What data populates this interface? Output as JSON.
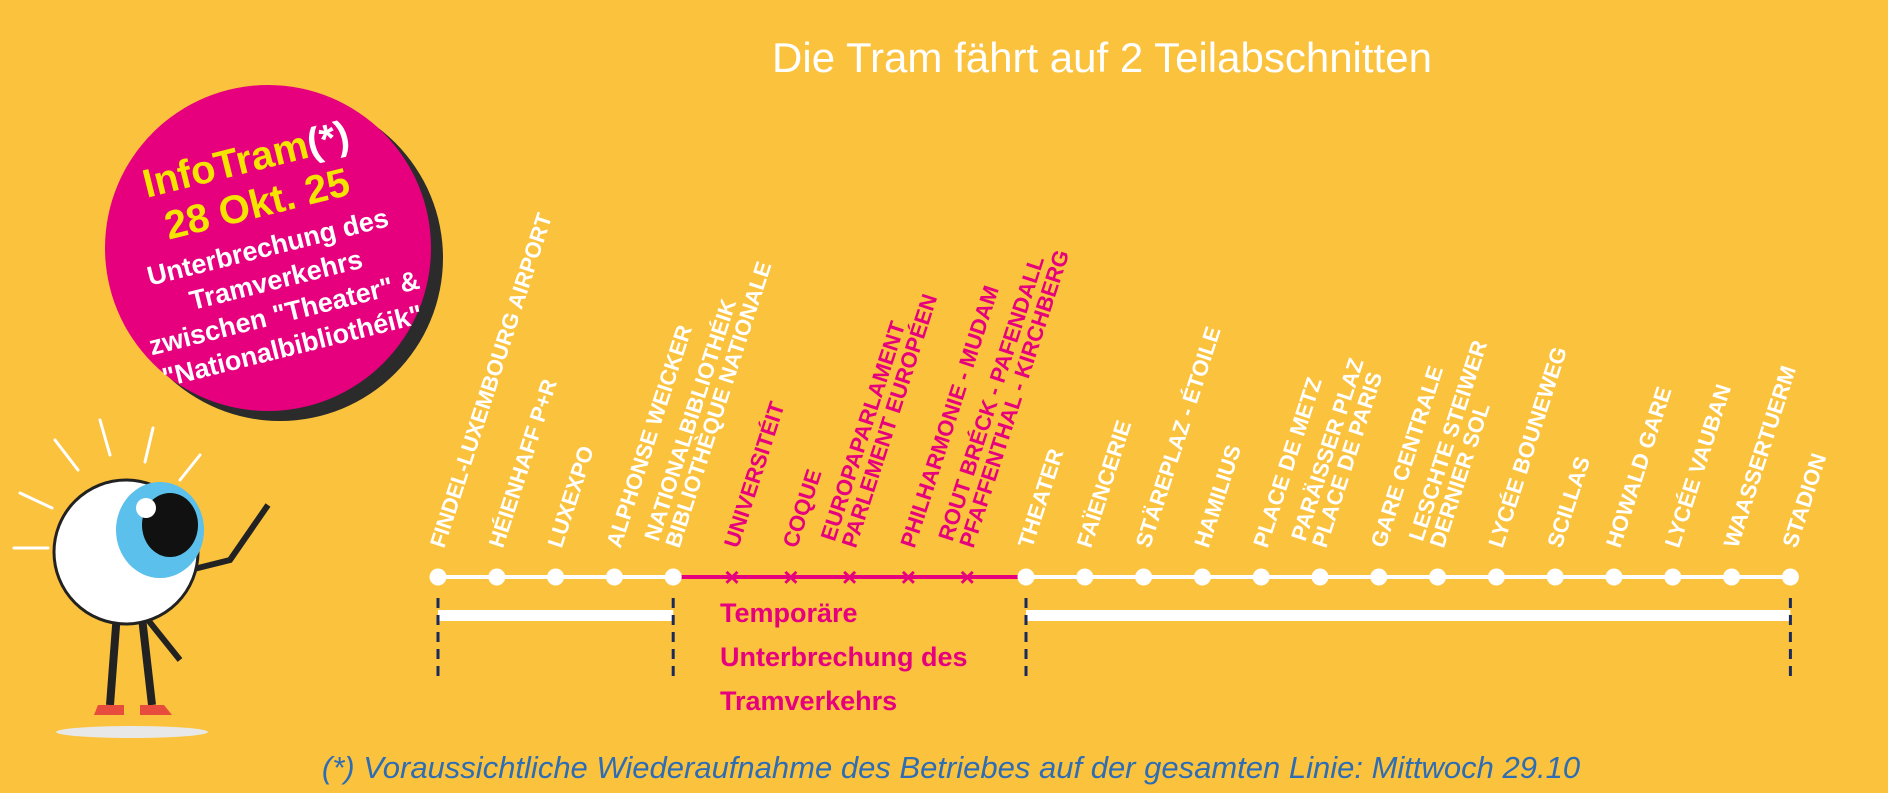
{
  "header": {
    "title": "Die Tram fährt auf 2 Teilabschnitten"
  },
  "badge": {
    "title": "InfoTram",
    "mark": "(*)",
    "date": "28 Okt. 25",
    "lines": [
      "Unterbrechung des",
      "Tramverkehrs",
      "zwischen \"Theater\" &",
      "\"Nationalbibliothéik\""
    ]
  },
  "stations": [
    {
      "lines": [
        "FINDEL-LUXEMBOURG AIRPORT"
      ],
      "interrupted": false
    },
    {
      "lines": [
        "HÉIENHAFF P+R"
      ],
      "interrupted": false
    },
    {
      "lines": [
        "LUXEXPO"
      ],
      "interrupted": false
    },
    {
      "lines": [
        "ALPHONSE WEICKER"
      ],
      "interrupted": false
    },
    {
      "lines": [
        "NATIONALBIBLIOTHÉIK",
        "BIBLIOTHÈQUE NATIONALE"
      ],
      "interrupted": false
    },
    {
      "lines": [
        "UNIVERSITÉIT"
      ],
      "interrupted": true
    },
    {
      "lines": [
        "COQUE"
      ],
      "interrupted": true
    },
    {
      "lines": [
        "EUROPAPARLAMENT",
        "PARLEMENT EUROPÉEN"
      ],
      "interrupted": true
    },
    {
      "lines": [
        "PHILHARMONIE - MUDAM"
      ],
      "interrupted": true
    },
    {
      "lines": [
        "ROUT BRÉCK - PAFENDALL",
        "PFAFFENTHAL - KIRCHBERG"
      ],
      "interrupted": true
    },
    {
      "lines": [
        "THEATER"
      ],
      "interrupted": false
    },
    {
      "lines": [
        "FAÏENCERIE"
      ],
      "interrupted": false
    },
    {
      "lines": [
        "STÄREPLAZ - ÉTOILE"
      ],
      "interrupted": false
    },
    {
      "lines": [
        "HAMILIUS"
      ],
      "interrupted": false
    },
    {
      "lines": [
        "PLACE DE METZ"
      ],
      "interrupted": false
    },
    {
      "lines": [
        "PARÄISSER PLAZ",
        "PLACE DE PARIS"
      ],
      "interrupted": false
    },
    {
      "lines": [
        "GARE CENTRALE"
      ],
      "interrupted": false
    },
    {
      "lines": [
        "LESCHTE STEIWER",
        "DERNIER SOL"
      ],
      "interrupted": false
    },
    {
      "lines": [
        "LYCÉE BOUNEWEG"
      ],
      "interrupted": false
    },
    {
      "lines": [
        "SCILLAS"
      ],
      "interrupted": false
    },
    {
      "lines": [
        "HOWALD GARE"
      ],
      "interrupted": false
    },
    {
      "lines": [
        "LYCÉE VAUBAN"
      ],
      "interrupted": false
    },
    {
      "lines": [
        "WAASSERTUERM"
      ],
      "interrupted": false
    },
    {
      "lines": [
        "STADION"
      ],
      "interrupted": false
    }
  ],
  "interruption": {
    "lines": [
      "Temporäre",
      "Unterbrechung des",
      "Tramverkehrs"
    ]
  },
  "footnote": "(*) Voraussichtliche Wiederaufnahme des Betriebes auf der gesamten Linie: Mittwoch 29.10"
}
